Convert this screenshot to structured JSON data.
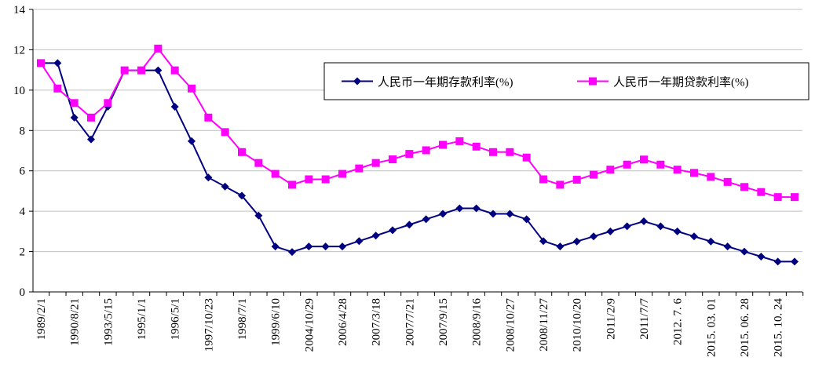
{
  "chart_data": {
    "type": "line",
    "categories": [
      "1989/2/1",
      null,
      "1990/8/21",
      null,
      "1993/5/15",
      null,
      "1995/1/1",
      null,
      "1996/5/1",
      null,
      "1997/10/23",
      null,
      "1998/7/1",
      null,
      "1999/6/10",
      null,
      "2004/10/29",
      null,
      "2006/4/28",
      null,
      "2007/3/18",
      null,
      "2007/7/21",
      null,
      "2007/9/15",
      null,
      "2008/9/16",
      null,
      "2008/10/27",
      null,
      "2008/11/27",
      null,
      "2010/10/20",
      null,
      "2011/2/9",
      null,
      "2011/7/7",
      null,
      "2012. 7. 6",
      null,
      "2015. 03. 01",
      null,
      "2015. 06. 28",
      null,
      "2015. 10. 24",
      null
    ],
    "series": [
      {
        "name": "人民币一年期存款利率(%)",
        "color": "#000080",
        "marker": "diamond",
        "values": [
          11.34,
          11.34,
          8.64,
          7.56,
          9.18,
          10.98,
          10.98,
          10.98,
          9.18,
          7.47,
          5.67,
          5.22,
          4.77,
          3.78,
          2.25,
          1.98,
          2.25,
          2.25,
          2.25,
          2.52,
          2.79,
          3.06,
          3.33,
          3.6,
          3.87,
          4.14,
          4.14,
          3.87,
          3.87,
          3.6,
          2.52,
          2.25,
          2.5,
          2.75,
          3.0,
          3.25,
          3.5,
          3.25,
          3.0,
          2.75,
          2.5,
          2.25,
          2.0,
          1.75,
          1.5,
          1.5
        ]
      },
      {
        "name": "人民币一年期贷款利率(%)",
        "color": "#ff00ff",
        "marker": "square",
        "values": [
          11.34,
          10.08,
          9.36,
          8.64,
          9.36,
          10.98,
          10.98,
          12.06,
          10.98,
          10.08,
          8.64,
          7.92,
          6.93,
          6.39,
          5.85,
          5.31,
          5.58,
          5.58,
          5.85,
          6.12,
          6.39,
          6.57,
          6.84,
          7.02,
          7.29,
          7.47,
          7.2,
          6.93,
          6.93,
          6.66,
          5.58,
          5.31,
          5.56,
          5.81,
          6.06,
          6.31,
          6.56,
          6.31,
          6.06,
          5.9,
          5.7,
          5.45,
          5.2,
          4.95,
          4.7,
          4.7
        ]
      }
    ],
    "ylim": [
      0,
      14
    ],
    "yticks": [
      0,
      2,
      4,
      6,
      8,
      10,
      12,
      14
    ],
    "grid": true,
    "legend": "top-right"
  }
}
